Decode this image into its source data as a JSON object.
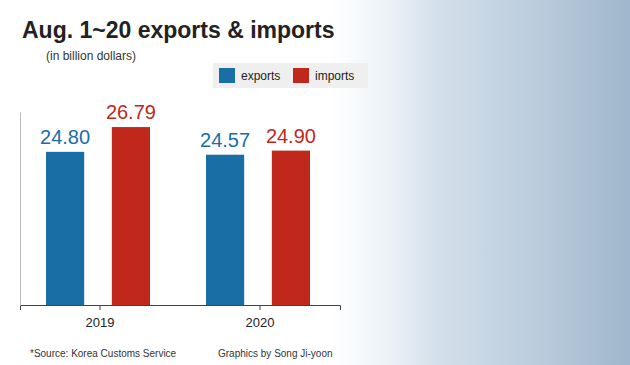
{
  "chart_data": {
    "type": "bar",
    "title": "Aug. 1~20 exports & imports",
    "subtitle": "(in billion dollars)",
    "categories": [
      "2019",
      "2020"
    ],
    "series": [
      {
        "name": "exports",
        "color": "#1a6ea6",
        "values": [
          24.8,
          24.57
        ],
        "value_labels": [
          "24.80",
          "24.57"
        ]
      },
      {
        "name": "imports",
        "color": "#c1281c",
        "values": [
          26.79,
          24.9
        ],
        "value_labels": [
          "26.79",
          "24.90"
        ]
      }
    ],
    "ylim": [
      12.5,
      28
    ],
    "yticks": [],
    "tick_labels": "x",
    "data_labels": true,
    "legend": "top",
    "source": "*Source: Korea Customs Service",
    "credit": "Graphics by Song Ji-yoon"
  }
}
